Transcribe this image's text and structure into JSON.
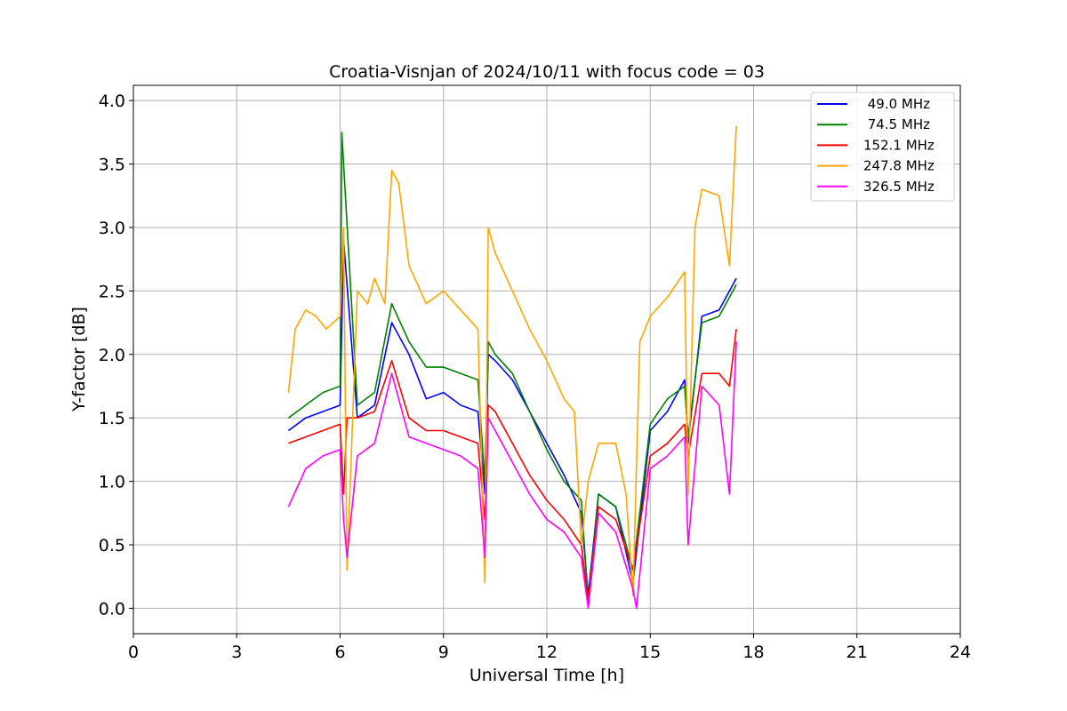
{
  "chart_data": {
    "type": "line",
    "title": "Croatia-Visnjan of 2024/10/11 with focus code = 03",
    "xlabel": "Universal Time [h]",
    "ylabel": "Y-factor [dB]",
    "xlim": [
      0,
      24
    ],
    "ylim": [
      -0.2,
      4.12
    ],
    "xticks": [
      0,
      3,
      6,
      9,
      12,
      15,
      18,
      21,
      24
    ],
    "xtick_labels": [
      "0",
      "3",
      "6",
      "9",
      "12",
      "15",
      "18",
      "21",
      "24"
    ],
    "yticks": [
      0.0,
      0.5,
      1.0,
      1.5,
      2.0,
      2.5,
      3.0,
      3.5,
      4.0
    ],
    "ytick_labels": [
      "0.0",
      "0.5",
      "1.0",
      "1.5",
      "2.0",
      "2.5",
      "3.0",
      "3.5",
      "4.0"
    ],
    "grid": true,
    "legend_position": "top-right",
    "series": [
      {
        "name": " 49.0 MHz",
        "color": "#0000ff",
        "x": [
          4.5,
          5.0,
          5.5,
          6.0,
          6.1,
          6.5,
          7.0,
          7.5,
          8.0,
          8.5,
          9.0,
          9.5,
          10.0,
          10.2,
          10.3,
          10.5,
          11.0,
          11.5,
          12.0,
          12.5,
          13.0,
          13.2,
          13.5,
          14.0,
          14.5,
          15.0,
          15.5,
          16.0,
          16.1,
          16.5,
          17.0,
          17.5
        ],
        "y": [
          1.4,
          1.5,
          1.55,
          1.6,
          2.9,
          1.5,
          1.6,
          2.25,
          2.0,
          1.65,
          1.7,
          1.6,
          1.55,
          0.9,
          2.0,
          1.95,
          1.8,
          1.55,
          1.3,
          1.05,
          0.75,
          0.1,
          0.9,
          0.8,
          0.2,
          1.4,
          1.55,
          1.8,
          1.3,
          2.3,
          2.35,
          2.6
        ]
      },
      {
        "name": " 74.5 MHz",
        "color": "#008000",
        "x": [
          4.5,
          5.0,
          5.5,
          6.0,
          6.05,
          6.5,
          7.0,
          7.5,
          8.0,
          8.5,
          9.0,
          9.5,
          10.0,
          10.2,
          10.3,
          10.5,
          11.0,
          11.5,
          12.0,
          12.5,
          13.0,
          13.2,
          13.5,
          14.0,
          14.5,
          15.0,
          15.5,
          16.0,
          16.1,
          16.5,
          17.0,
          17.5
        ],
        "y": [
          1.5,
          1.6,
          1.7,
          1.75,
          3.75,
          1.6,
          1.7,
          2.4,
          2.1,
          1.9,
          1.9,
          1.85,
          1.8,
          1.0,
          2.1,
          2.0,
          1.85,
          1.55,
          1.25,
          1.0,
          0.85,
          0.05,
          0.9,
          0.8,
          0.3,
          1.45,
          1.65,
          1.75,
          1.35,
          2.25,
          2.3,
          2.55
        ]
      },
      {
        "name": "152.1 MHz",
        "color": "#ff0000",
        "x": [
          4.5,
          5.0,
          5.5,
          6.0,
          6.1,
          6.2,
          6.5,
          7.0,
          7.5,
          8.0,
          8.5,
          9.0,
          9.5,
          10.0,
          10.2,
          10.3,
          10.5,
          11.0,
          11.5,
          12.0,
          12.5,
          13.0,
          13.2,
          13.5,
          14.0,
          14.5,
          15.0,
          15.5,
          16.0,
          16.1,
          16.5,
          17.0,
          17.3,
          17.5
        ],
        "y": [
          1.3,
          1.35,
          1.4,
          1.45,
          0.9,
          1.5,
          1.5,
          1.55,
          1.95,
          1.5,
          1.4,
          1.4,
          1.35,
          1.3,
          0.7,
          1.6,
          1.55,
          1.3,
          1.05,
          0.85,
          0.7,
          0.5,
          0.05,
          0.8,
          0.7,
          0.3,
          1.2,
          1.3,
          1.45,
          1.2,
          1.85,
          1.85,
          1.75,
          2.2
        ]
      },
      {
        "name": "247.8 MHz",
        "color": "#ffa500",
        "x": [
          4.5,
          4.7,
          5.0,
          5.3,
          5.6,
          6.0,
          6.1,
          6.2,
          6.5,
          6.8,
          7.0,
          7.3,
          7.5,
          7.7,
          8.0,
          8.5,
          9.0,
          9.5,
          10.0,
          10.2,
          10.3,
          10.5,
          11.0,
          11.5,
          12.0,
          12.5,
          12.8,
          13.0,
          13.2,
          13.5,
          14.0,
          14.3,
          14.5,
          14.7,
          15.0,
          15.5,
          16.0,
          16.1,
          16.3,
          16.5,
          17.0,
          17.3,
          17.5
        ],
        "y": [
          1.7,
          2.2,
          2.35,
          2.3,
          2.2,
          2.3,
          3.0,
          0.3,
          2.5,
          2.4,
          2.6,
          2.4,
          3.45,
          3.35,
          2.7,
          2.4,
          2.5,
          2.35,
          2.2,
          0.2,
          3.0,
          2.8,
          2.5,
          2.2,
          1.95,
          1.65,
          1.55,
          0.5,
          1.0,
          1.3,
          1.3,
          0.9,
          0.1,
          2.1,
          2.3,
          2.45,
          2.65,
          0.9,
          3.0,
          3.3,
          3.25,
          2.7,
          3.8
        ]
      },
      {
        "name": "326.5 MHz",
        "color": "#ff00ff",
        "x": [
          4.5,
          5.0,
          5.5,
          6.0,
          6.1,
          6.2,
          6.5,
          7.0,
          7.5,
          8.0,
          8.5,
          9.0,
          9.5,
          10.0,
          10.2,
          10.3,
          10.5,
          11.0,
          11.5,
          12.0,
          12.5,
          13.0,
          13.2,
          13.5,
          14.0,
          14.5,
          14.6,
          15.0,
          15.5,
          16.0,
          16.1,
          16.5,
          17.0,
          17.3,
          17.5
        ],
        "y": [
          0.8,
          1.1,
          1.2,
          1.25,
          0.7,
          0.4,
          1.2,
          1.3,
          1.85,
          1.35,
          1.3,
          1.25,
          1.2,
          1.1,
          0.4,
          1.5,
          1.4,
          1.15,
          0.9,
          0.7,
          0.6,
          0.4,
          0.0,
          0.75,
          0.6,
          0.15,
          0.0,
          1.1,
          1.2,
          1.35,
          0.5,
          1.75,
          1.6,
          0.9,
          2.1
        ]
      }
    ]
  }
}
